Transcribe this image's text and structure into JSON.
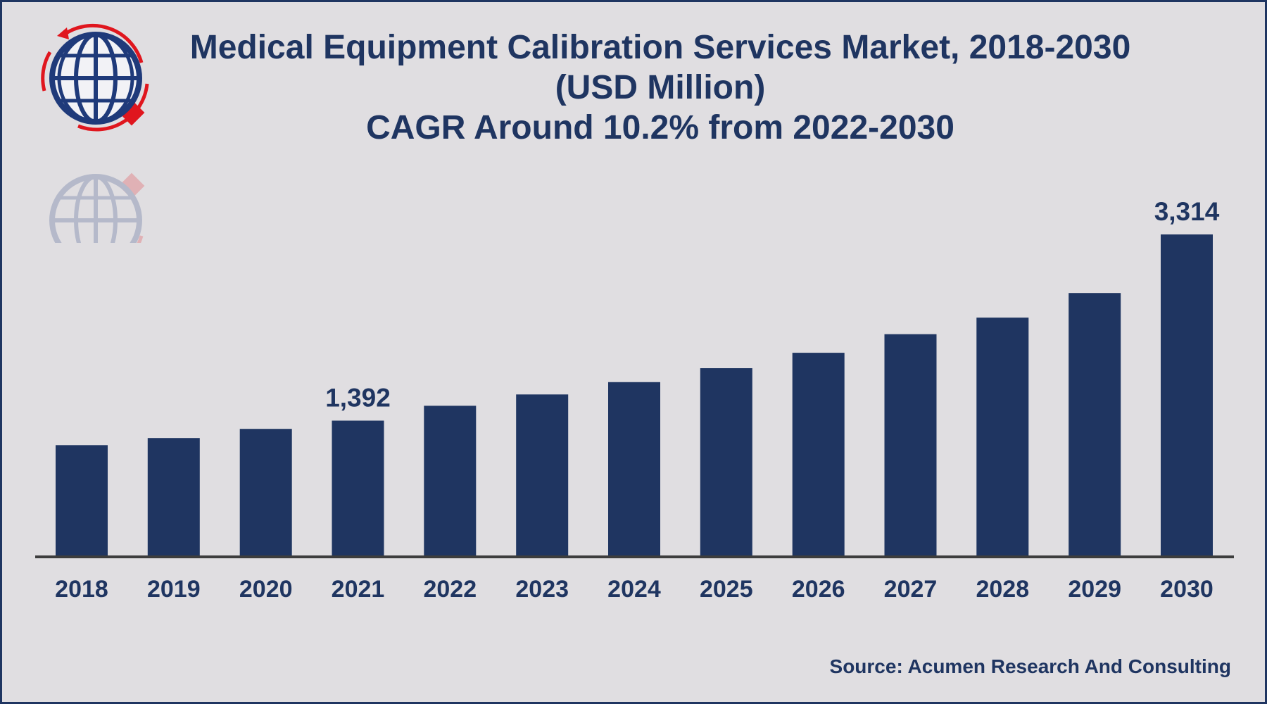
{
  "title": {
    "line1": "Medical Equipment Calibration Services Market, 2018-2030",
    "line2": "(USD Million)",
    "line3": "CAGR Around 10.2% from 2022-2030"
  },
  "source": "Source: Acumen Research And Consulting",
  "colors": {
    "bar": "#1f3561",
    "background": "#e0dee1",
    "axis": "#3d3d3d",
    "logo_red": "#e0161e"
  },
  "icons": {
    "logo": "globe-logo-icon"
  },
  "chart_data": {
    "type": "bar",
    "categories": [
      "2018",
      "2019",
      "2020",
      "2021",
      "2022",
      "2023",
      "2024",
      "2025",
      "2026",
      "2027",
      "2028",
      "2029",
      "2030"
    ],
    "values": [
      1139,
      1212,
      1307,
      1392,
      1545,
      1662,
      1789,
      1933,
      2092,
      2284,
      2455,
      2709,
      3314
    ],
    "data_labels": [
      {
        "index": 3,
        "text": "1,392"
      },
      {
        "index": 12,
        "text": "3,314"
      }
    ],
    "ylim": [
      0,
      3314
    ],
    "grid": false,
    "legend": "none"
  }
}
